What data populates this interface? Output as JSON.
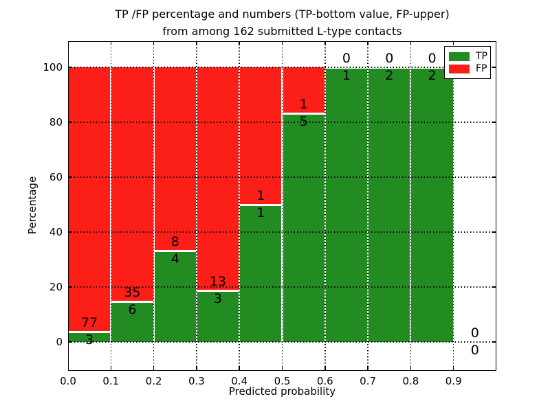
{
  "figure": {
    "background": "#ffffff",
    "axis_color": "#000000"
  },
  "chart_data": {
    "type": "bar",
    "stacked": true,
    "title_line1": "TP /FP percentage and numbers (TP-bottom value, FP-upper)",
    "title_line2": "from among 162 submitted L-type contacts",
    "xlabel": "Predicted probability",
    "ylabel": "Percentage",
    "x_ticks": [
      "0.0",
      "0.1",
      "0.2",
      "0.3",
      "0.4",
      "0.5",
      "0.6",
      "0.7",
      "0.8",
      "0.9"
    ],
    "y_ticks": [
      0,
      20,
      40,
      60,
      80,
      100
    ],
    "xlim": [
      0.0,
      1.005
    ],
    "ylim": [
      -10.5,
      109.5
    ],
    "grid": true,
    "grid_style": "dotted",
    "bar_width": 0.1,
    "legend": {
      "position": "upper right",
      "entries": [
        {
          "label": "TP",
          "color": "#228B22"
        },
        {
          "label": "FP",
          "color": "#FC1F17"
        }
      ]
    },
    "bins": [
      {
        "x_range": [
          0.0,
          0.1
        ],
        "tp": 3,
        "fp": 77,
        "tp_percent": 3.75
      },
      {
        "x_range": [
          0.1,
          0.2
        ],
        "tp": 6,
        "fp": 35,
        "tp_percent": 14.63
      },
      {
        "x_range": [
          0.2,
          0.3
        ],
        "tp": 4,
        "fp": 8,
        "tp_percent": 33.33
      },
      {
        "x_range": [
          0.3,
          0.4
        ],
        "tp": 3,
        "fp": 13,
        "tp_percent": 18.75
      },
      {
        "x_range": [
          0.4,
          0.5
        ],
        "tp": 1,
        "fp": 1,
        "tp_percent": 50.0
      },
      {
        "x_range": [
          0.5,
          0.6
        ],
        "tp": 5,
        "fp": 1,
        "tp_percent": 83.33
      },
      {
        "x_range": [
          0.6,
          0.7
        ],
        "tp": 1,
        "fp": 0,
        "tp_percent": 100.0
      },
      {
        "x_range": [
          0.7,
          0.8
        ],
        "tp": 2,
        "fp": 0,
        "tp_percent": 100.0
      },
      {
        "x_range": [
          0.8,
          0.9
        ],
        "tp": 2,
        "fp": 0,
        "tp_percent": 100.0
      },
      {
        "x_range": [
          0.9,
          1.0
        ],
        "tp": 0,
        "fp": 0,
        "tp_percent": null
      }
    ]
  }
}
